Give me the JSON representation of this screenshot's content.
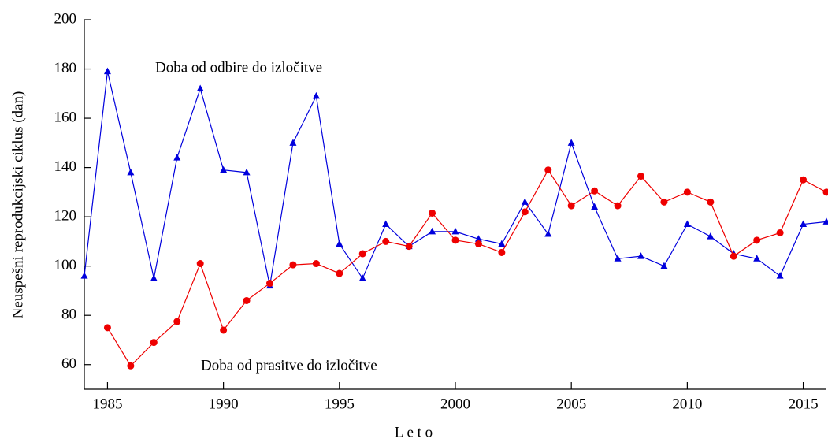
{
  "chart_data": {
    "type": "line",
    "xlabel": "L e t o",
    "ylabel": "Neuspešni reprodukcijski ciklus (dan)",
    "x": [
      1984,
      1985,
      1986,
      1987,
      1988,
      1989,
      1990,
      1991,
      1992,
      1993,
      1994,
      1995,
      1996,
      1997,
      1998,
      1999,
      2000,
      2001,
      2002,
      2003,
      2004,
      2005,
      2006,
      2007,
      2008,
      2009,
      2010,
      2011,
      2012,
      2013,
      2014,
      2015,
      2016
    ],
    "series": [
      {
        "name": "Doba od odbire do izločitve",
        "color": "#0000dd",
        "marker": "triangle",
        "values": [
          96,
          179,
          138,
          95,
          144,
          172,
          139,
          138,
          92,
          150,
          169,
          109,
          95,
          117,
          108,
          114,
          114,
          111,
          109,
          126,
          113,
          150,
          124,
          103,
          104,
          100,
          117,
          112,
          105,
          103,
          96,
          117,
          118
        ]
      },
      {
        "name": "Doba od prasitve do izločitve",
        "color": "#ee0000",
        "marker": "circle",
        "values": [
          null,
          75,
          59.5,
          69,
          77.5,
          101,
          74,
          86,
          93,
          100.5,
          101,
          97,
          105,
          110,
          108,
          121.5,
          110.5,
          109,
          105.5,
          122,
          139,
          124.5,
          130.5,
          124.5,
          136.5,
          126,
          130,
          126,
          104,
          110.5,
          113.5,
          135,
          130
        ]
      }
    ],
    "xlim": [
      1984,
      2016
    ],
    "xticks": [
      1985,
      1990,
      1995,
      2000,
      2005,
      2010,
      2015
    ],
    "ylim": [
      50,
      200
    ],
    "yticks": [
      60,
      80,
      100,
      120,
      140,
      160,
      180,
      200
    ],
    "grid": false
  }
}
